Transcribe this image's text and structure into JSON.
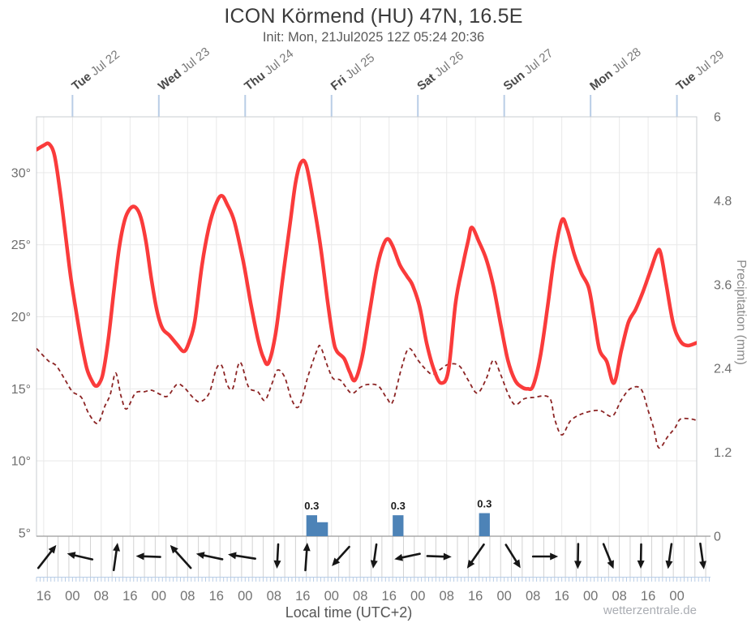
{
  "header": {
    "title": "ICON Körmend (HU) 47N, 16.5E",
    "subtitle": "Init: Mon, 21Jul2025 12Z 05:24 20:36"
  },
  "footer": {
    "xlabel": "Local time (UTC+2)",
    "watermark": "wetterzentrale.de"
  },
  "chart_data": {
    "type": "line",
    "title": "ICON Körmend (HU) 47N, 16.5E",
    "subtitle": "Init: Mon, 21Jul2025 12Z 05:24 20:36",
    "xlabel": "Local time (UTC+2)",
    "x_hours_domain": [
      0,
      183.5
    ],
    "x_start": "Mon 21Jul2025 14:00 local",
    "x_ticks": [
      [
        2,
        "16"
      ],
      [
        10,
        "00"
      ],
      [
        18,
        "08"
      ],
      [
        26,
        "16"
      ],
      [
        34,
        "00"
      ],
      [
        42,
        "08"
      ],
      [
        50,
        "16"
      ],
      [
        58,
        "00"
      ],
      [
        66,
        "08"
      ],
      [
        74,
        "16"
      ],
      [
        82,
        "00"
      ],
      [
        90,
        "08"
      ],
      [
        98,
        "16"
      ],
      [
        106,
        "00"
      ],
      [
        114,
        "08"
      ],
      [
        122,
        "16"
      ],
      [
        130,
        "00"
      ],
      [
        138,
        "08"
      ],
      [
        146,
        "16"
      ],
      [
        154,
        "00"
      ],
      [
        162,
        "08"
      ],
      [
        170,
        "16"
      ],
      [
        178,
        "00"
      ]
    ],
    "day_labels": [
      [
        10,
        "Tue",
        "Jul 22"
      ],
      [
        34,
        "Wed",
        "Jul 23"
      ],
      [
        58,
        "Thu",
        "Jul 24"
      ],
      [
        82,
        "Fri",
        "Jul 25"
      ],
      [
        106,
        "Sat",
        "Jul 26"
      ],
      [
        130,
        "Sun",
        "Jul 27"
      ],
      [
        154,
        "Mon",
        "Jul 28"
      ],
      [
        178,
        "Tue",
        "Jul 29"
      ]
    ],
    "left_axis": {
      "unit": "°C",
      "ticks": [
        [
          5,
          "5°"
        ],
        [
          10,
          "10°"
        ],
        [
          15,
          "15°"
        ],
        [
          20,
          "20°"
        ],
        [
          25,
          "25°"
        ],
        [
          30,
          "30°"
        ]
      ],
      "grid_at": [
        10,
        15,
        20,
        25,
        30
      ]
    },
    "right_axis": {
      "title": "Precipitation (mm)",
      "ticks": [
        [
          0,
          "0"
        ],
        [
          1.2,
          "1.2"
        ],
        [
          2.4,
          "2.4"
        ],
        [
          3.6,
          "3.6"
        ],
        [
          4.8,
          "4.8"
        ],
        [
          6,
          "6"
        ]
      ],
      "range": [
        0,
        6
      ]
    },
    "series": [
      {
        "name": "temperature",
        "style": "solid",
        "points": [
          [
            0,
            31.6
          ],
          [
            2,
            31.9
          ],
          [
            3.5,
            32.0
          ],
          [
            5,
            31.2
          ],
          [
            6.5,
            28.8
          ],
          [
            8,
            25.8
          ],
          [
            9.5,
            22.8
          ],
          [
            11,
            20.4
          ],
          [
            12.5,
            18.2
          ],
          [
            14,
            16.4
          ],
          [
            15.5,
            15.5
          ],
          [
            16.5,
            15.2
          ],
          [
            17.5,
            15.4
          ],
          [
            18.5,
            16.1
          ],
          [
            20,
            18.5
          ],
          [
            21.5,
            21.8
          ],
          [
            23,
            24.8
          ],
          [
            24.5,
            26.7
          ],
          [
            26,
            27.5
          ],
          [
            27.5,
            27.6
          ],
          [
            29,
            26.9
          ],
          [
            30.5,
            25.1
          ],
          [
            32,
            22.5
          ],
          [
            33.5,
            20.4
          ],
          [
            35,
            19.2
          ],
          [
            37,
            18.7
          ],
          [
            39,
            18.1
          ],
          [
            41,
            17.6
          ],
          [
            42.5,
            18.3
          ],
          [
            44,
            19.7
          ],
          [
            46,
            23.6
          ],
          [
            48,
            26.3
          ],
          [
            50,
            27.9
          ],
          [
            51.5,
            28.4
          ],
          [
            53,
            27.8
          ],
          [
            55,
            26.6
          ],
          [
            57.5,
            23.8
          ],
          [
            59.5,
            21.0
          ],
          [
            61.5,
            18.5
          ],
          [
            63,
            17.2
          ],
          [
            64.5,
            16.8
          ],
          [
            66.5,
            18.9
          ],
          [
            68.5,
            22.8
          ],
          [
            70.5,
            26.5
          ],
          [
            72,
            29.3
          ],
          [
            73.5,
            30.7
          ],
          [
            75,
            30.5
          ],
          [
            77,
            27.9
          ],
          [
            79,
            24.8
          ],
          [
            81,
            20.9
          ],
          [
            82.5,
            18.4
          ],
          [
            83.5,
            17.6
          ],
          [
            85.5,
            17.1
          ],
          [
            87,
            16.2
          ],
          [
            88.5,
            15.6
          ],
          [
            90.5,
            17.2
          ],
          [
            92.5,
            20.2
          ],
          [
            94.5,
            23.2
          ],
          [
            96,
            24.7
          ],
          [
            97.5,
            25.4
          ],
          [
            99,
            24.9
          ],
          [
            101,
            23.6
          ],
          [
            103,
            22.8
          ],
          [
            104.5,
            22.2
          ],
          [
            106.5,
            20.7
          ],
          [
            108.5,
            18.1
          ],
          [
            110.5,
            16.3
          ],
          [
            112.5,
            15.4
          ],
          [
            114.5,
            16.3
          ],
          [
            116.5,
            21.0
          ],
          [
            118.5,
            23.6
          ],
          [
            120,
            25.3
          ],
          [
            121,
            26.2
          ],
          [
            123,
            25.2
          ],
          [
            125,
            24.0
          ],
          [
            127,
            22.1
          ],
          [
            129,
            19.5
          ],
          [
            131,
            17.0
          ],
          [
            133,
            15.6
          ],
          [
            135,
            15.1
          ],
          [
            136.5,
            15.0
          ],
          [
            138,
            15.2
          ],
          [
            140,
            17.2
          ],
          [
            142,
            20.6
          ],
          [
            144,
            24.3
          ],
          [
            146,
            26.7
          ],
          [
            147.5,
            26.1
          ],
          [
            149.5,
            24.3
          ],
          [
            151.5,
            23.0
          ],
          [
            153.5,
            22.0
          ],
          [
            155,
            19.9
          ],
          [
            156.5,
            17.7
          ],
          [
            158.5,
            16.9
          ],
          [
            160.5,
            15.4
          ],
          [
            162.5,
            17.6
          ],
          [
            164.5,
            19.6
          ],
          [
            166.5,
            20.5
          ],
          [
            168.5,
            21.7
          ],
          [
            170.5,
            23.1
          ],
          [
            172.5,
            24.5
          ],
          [
            173.5,
            24.4
          ],
          [
            175,
            22.3
          ],
          [
            177,
            19.5
          ],
          [
            179,
            18.3
          ],
          [
            181,
            18.0
          ],
          [
            183.5,
            18.2
          ]
        ]
      },
      {
        "name": "dewpoint",
        "style": "dashed",
        "points": [
          [
            0,
            17.8
          ],
          [
            1.5,
            17.4
          ],
          [
            3.5,
            16.9
          ],
          [
            5.5,
            16.6
          ],
          [
            8,
            15.6
          ],
          [
            10,
            14.8
          ],
          [
            12.5,
            14.4
          ],
          [
            14.5,
            13.3
          ],
          [
            17,
            12.6
          ],
          [
            19,
            13.8
          ],
          [
            20.5,
            14.6
          ],
          [
            22,
            16.1
          ],
          [
            23.5,
            14.5
          ],
          [
            25,
            13.6
          ],
          [
            27.5,
            14.7
          ],
          [
            30,
            14.8
          ],
          [
            32,
            14.9
          ],
          [
            34.5,
            14.6
          ],
          [
            36.5,
            14.5
          ],
          [
            39,
            15.3
          ],
          [
            41,
            15.1
          ],
          [
            43.5,
            14.4
          ],
          [
            45.5,
            14.1
          ],
          [
            48,
            14.7
          ],
          [
            50,
            16.4
          ],
          [
            51.5,
            16.6
          ],
          [
            53,
            15.3
          ],
          [
            54.5,
            15.0
          ],
          [
            56,
            16.6
          ],
          [
            57,
            16.7
          ],
          [
            59,
            15.1
          ],
          [
            61.5,
            14.8
          ],
          [
            63.5,
            14.2
          ],
          [
            65.5,
            15.4
          ],
          [
            67,
            16.3
          ],
          [
            69,
            15.8
          ],
          [
            71,
            14.2
          ],
          [
            73,
            13.8
          ],
          [
            75.5,
            15.9
          ],
          [
            78,
            17.7
          ],
          [
            79,
            17.9
          ],
          [
            81,
            16.5
          ],
          [
            82.5,
            15.7
          ],
          [
            84.5,
            15.6
          ],
          [
            87.5,
            14.7
          ],
          [
            90,
            15.1
          ],
          [
            92,
            15.3
          ],
          [
            95,
            15.2
          ],
          [
            97.5,
            14.3
          ],
          [
            99,
            14.1
          ],
          [
            101.5,
            16.5
          ],
          [
            103.5,
            17.8
          ],
          [
            106,
            17.0
          ],
          [
            108,
            16.4
          ],
          [
            110,
            16.0
          ],
          [
            112,
            16.3
          ],
          [
            114.5,
            16.7
          ],
          [
            117.5,
            16.6
          ],
          [
            120,
            15.6
          ],
          [
            122.5,
            14.7
          ],
          [
            125,
            15.7
          ],
          [
            127,
            17.0
          ],
          [
            129,
            16.0
          ],
          [
            131,
            14.7
          ],
          [
            133,
            13.9
          ],
          [
            135.5,
            14.3
          ],
          [
            138,
            14.4
          ],
          [
            142.5,
            14.4
          ],
          [
            144,
            12.9
          ],
          [
            146,
            11.8
          ],
          [
            148.5,
            12.8
          ],
          [
            152,
            13.3
          ],
          [
            156.5,
            13.5
          ],
          [
            160,
            13.1
          ],
          [
            162.5,
            14.2
          ],
          [
            165,
            15.0
          ],
          [
            168,
            15.0
          ],
          [
            170,
            13.5
          ],
          [
            171.5,
            12.3
          ],
          [
            173,
            10.9
          ],
          [
            175.5,
            11.7
          ],
          [
            177.5,
            12.3
          ],
          [
            179,
            12.9
          ],
          [
            182,
            12.9
          ],
          [
            183.5,
            12.8
          ]
        ]
      }
    ],
    "precip_bars": [
      {
        "t0": 75,
        "t1": 78,
        "mm": 0.3,
        "label": "0.3"
      },
      {
        "t0": 78,
        "t1": 81,
        "mm": 0.2,
        "label": ""
      },
      {
        "t0": 99,
        "t1": 102,
        "mm": 0.3,
        "label": "0.3"
      },
      {
        "t0": 123,
        "t1": 126,
        "mm": 0.33,
        "label": "0.3"
      }
    ],
    "wind_arrows": [
      {
        "t": 3,
        "dir": 38,
        "len": 36
      },
      {
        "t": 12,
        "dir": 283,
        "len": 32
      },
      {
        "t": 22,
        "dir": 8,
        "len": 34
      },
      {
        "t": 31,
        "dir": 272,
        "len": 30
      },
      {
        "t": 40,
        "dir": 318,
        "len": 38
      },
      {
        "t": 48,
        "dir": 282,
        "len": 33
      },
      {
        "t": 57,
        "dir": 279,
        "len": 34
      },
      {
        "t": 67,
        "dir": 183,
        "len": 30
      },
      {
        "t": 75,
        "dir": 4,
        "len": 34
      },
      {
        "t": 84.5,
        "dir": 222,
        "len": 32
      },
      {
        "t": 94,
        "dir": 188,
        "len": 30
      },
      {
        "t": 103,
        "dir": 258,
        "len": 32
      },
      {
        "t": 112,
        "dir": 92,
        "len": 30
      },
      {
        "t": 122,
        "dir": 215,
        "len": 36
      },
      {
        "t": 132.5,
        "dir": 148,
        "len": 34
      },
      {
        "t": 141.5,
        "dir": 90,
        "len": 31
      },
      {
        "t": 150.5,
        "dir": 181,
        "len": 31
      },
      {
        "t": 159,
        "dir": 158,
        "len": 33
      },
      {
        "t": 168,
        "dir": 181,
        "len": 30
      },
      {
        "t": 176,
        "dir": 188,
        "len": 31
      },
      {
        "t": 185,
        "dir": 172,
        "len": 32
      }
    ],
    "colors": {
      "temperature": "#fa3b3b",
      "dewpoint": "#8c2424",
      "precip_bar": "#4d83b7",
      "grid": "#e9e9e9",
      "border": "#c8ccd2",
      "axis_line": "#9b9b9b",
      "strip_line": "#d2d2d2",
      "day_tick": "#b9cde6",
      "tick_text": "#6e6e6e",
      "x_tick_text": "#737373",
      "day_text_bold": "#4a4a4a",
      "day_text": "#7a7a7a",
      "bar_label": "#1c1c1c",
      "arrow": "#161616",
      "right_title_text": "#8a8a8a"
    },
    "legend_position": "none",
    "grid": true
  }
}
